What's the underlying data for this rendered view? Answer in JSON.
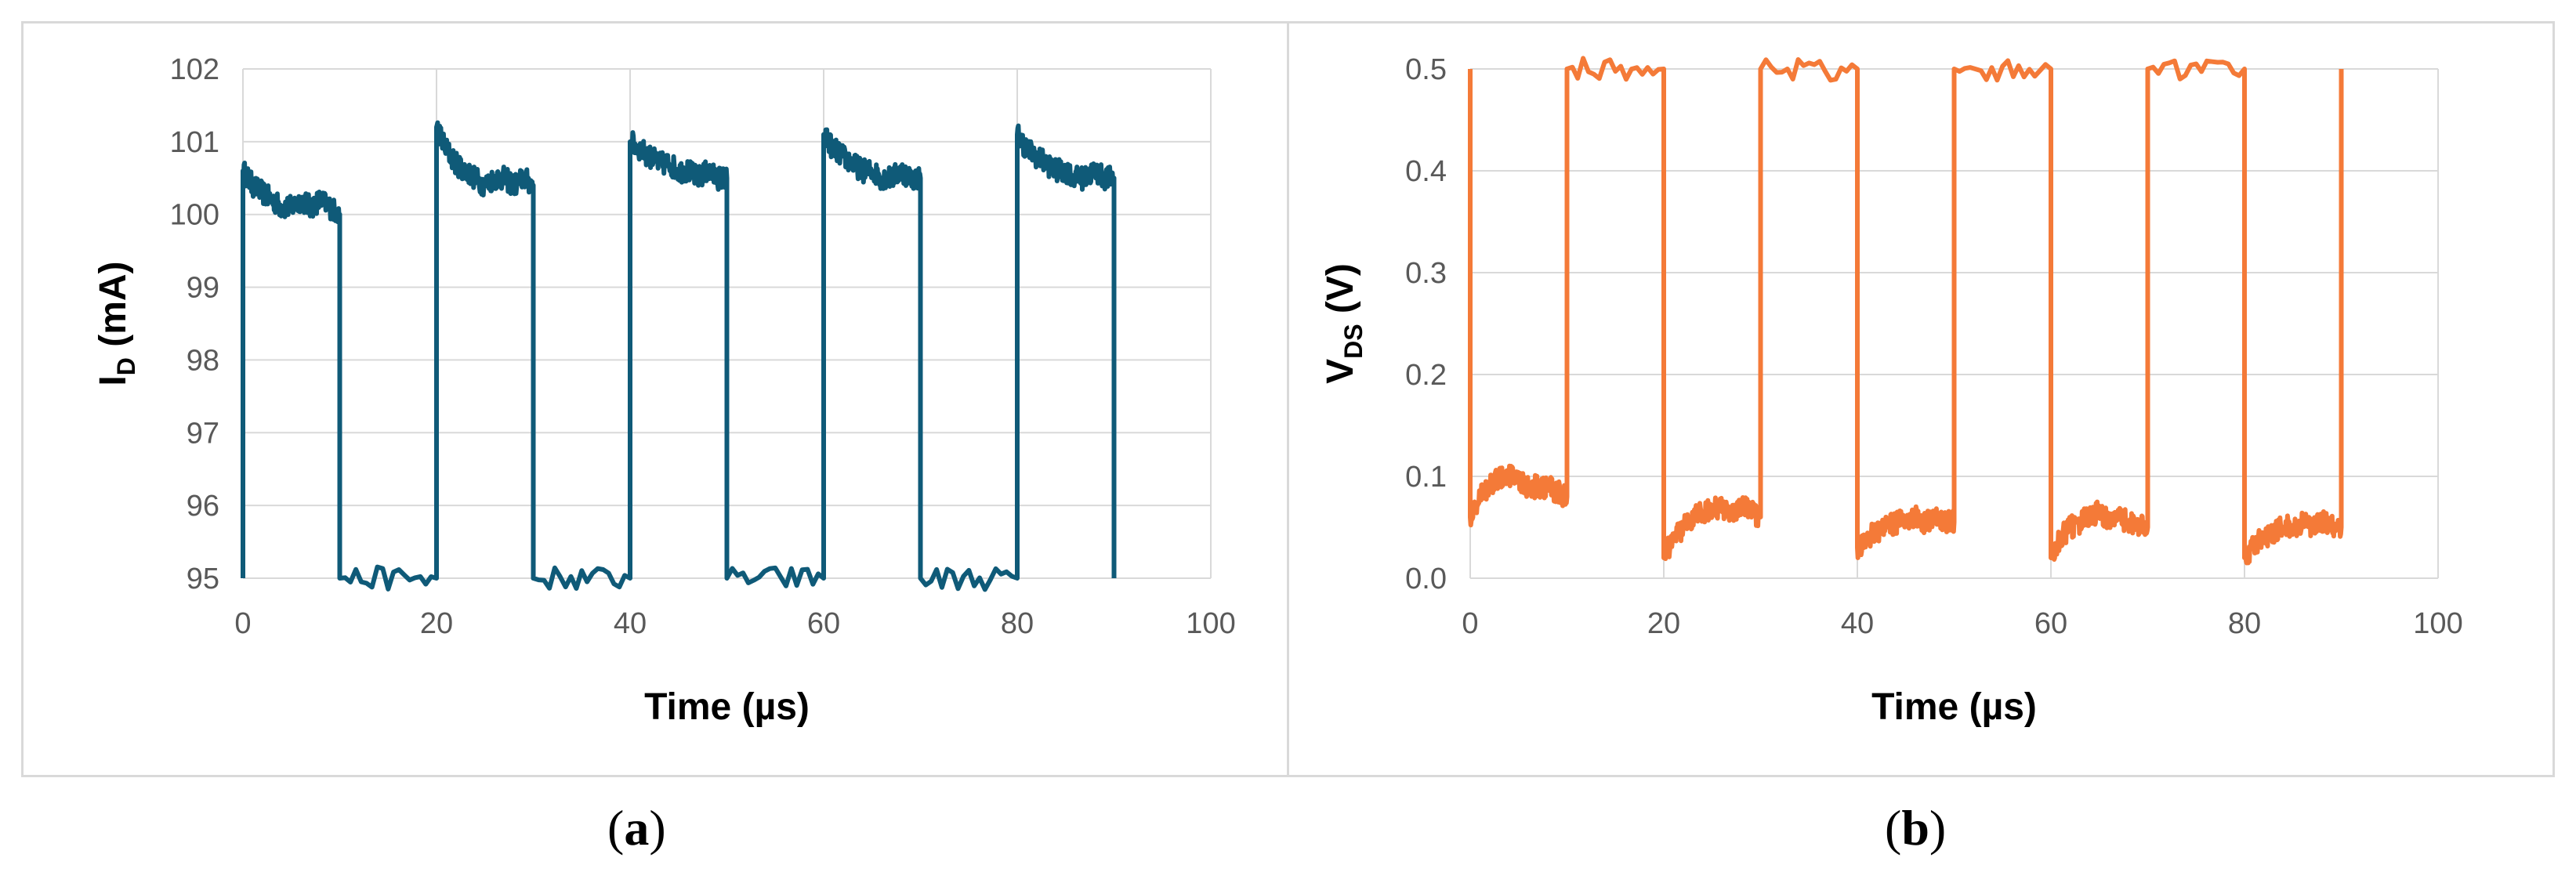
{
  "chart_data": [
    {
      "type": "line",
      "panel": "a",
      "xlabel": "Time (µs)",
      "ylabel_main": "I",
      "ylabel_sub": "D",
      "ylabel_unit": " (mA)",
      "xlim": [
        0,
        100
      ],
      "ylim": [
        95,
        102
      ],
      "xticks": [
        0,
        20,
        40,
        60,
        80,
        100
      ],
      "yticks": [
        95,
        96,
        97,
        98,
        99,
        100,
        101,
        102
      ],
      "grid": true,
      "color": "#0f5a78",
      "series": [
        {
          "x": [
            0,
            0,
            1,
            2,
            3,
            4,
            5,
            6,
            7,
            8,
            9,
            10,
            10,
            20,
            20,
            21,
            22,
            23,
            24,
            25,
            26,
            27,
            28,
            29,
            30,
            30,
            40,
            40,
            41,
            42,
            43,
            44,
            45,
            46,
            47,
            48,
            49,
            50,
            50,
            60,
            60,
            61,
            62,
            63,
            64,
            65,
            66,
            67,
            68,
            69,
            70,
            70,
            80,
            80,
            81,
            82,
            83,
            84,
            85,
            86,
            87,
            88,
            89,
            90,
            90
          ],
          "y": [
            95,
            100.6,
            100.4,
            100.3,
            100.2,
            100.1,
            100.1,
            100.2,
            100.1,
            100.2,
            100.1,
            100.0,
            95,
            95,
            101.2,
            100.9,
            100.7,
            100.6,
            100.5,
            100.4,
            100.5,
            100.5,
            100.4,
            100.5,
            100.4,
            95,
            95,
            101.0,
            100.9,
            100.8,
            100.7,
            100.7,
            100.6,
            100.6,
            100.5,
            100.6,
            100.5,
            100.5,
            95,
            95,
            101.1,
            100.9,
            100.8,
            100.7,
            100.6,
            100.6,
            100.5,
            100.5,
            100.6,
            100.5,
            100.5,
            95,
            95,
            101.1,
            100.9,
            100.8,
            100.7,
            100.6,
            100.6,
            100.5,
            100.5,
            100.6,
            100.5,
            100.5,
            95
          ]
        }
      ]
    },
    {
      "type": "line",
      "panel": "b",
      "xlabel": "Time (µs)",
      "ylabel_main": "V",
      "ylabel_sub": "DS",
      "ylabel_unit": " (V)",
      "xlim": [
        0,
        100
      ],
      "ylim": [
        0,
        0.5
      ],
      "xticks": [
        0,
        20,
        40,
        60,
        80,
        100
      ],
      "yticks": [
        0,
        0.1,
        0.2,
        0.3,
        0.4,
        0.5
      ],
      "grid": true,
      "color": "#f47a38",
      "series": [
        {
          "x": [
            0,
            0,
            1,
            2,
            3,
            4,
            5,
            6,
            7,
            8,
            9,
            10,
            10,
            20,
            20,
            21,
            22,
            23,
            24,
            25,
            26,
            27,
            28,
            29,
            30,
            30,
            40,
            40,
            41,
            42,
            43,
            44,
            45,
            46,
            47,
            48,
            49,
            50,
            50,
            60,
            60,
            61,
            62,
            63,
            64,
            65,
            66,
            67,
            68,
            69,
            70,
            70,
            80,
            80,
            81,
            82,
            83,
            84,
            85,
            86,
            87,
            88,
            89,
            90,
            90
          ],
          "y": [
            0.5,
            0.06,
            0.08,
            0.09,
            0.1,
            0.1,
            0.095,
            0.09,
            0.09,
            0.09,
            0.085,
            0.08,
            0.5,
            0.5,
            0.02,
            0.04,
            0.05,
            0.06,
            0.065,
            0.07,
            0.07,
            0.065,
            0.07,
            0.065,
            0.06,
            0.5,
            0.5,
            0.03,
            0.04,
            0.045,
            0.05,
            0.055,
            0.055,
            0.06,
            0.055,
            0.06,
            0.055,
            0.055,
            0.5,
            0.5,
            0.02,
            0.04,
            0.05,
            0.055,
            0.06,
            0.065,
            0.055,
            0.06,
            0.055,
            0.05,
            0.05,
            0.5,
            0.5,
            0.02,
            0.035,
            0.04,
            0.045,
            0.05,
            0.05,
            0.055,
            0.05,
            0.055,
            0.05,
            0.05,
            0.5
          ]
        }
      ]
    }
  ],
  "captions": {
    "a": "a",
    "b": "b"
  }
}
